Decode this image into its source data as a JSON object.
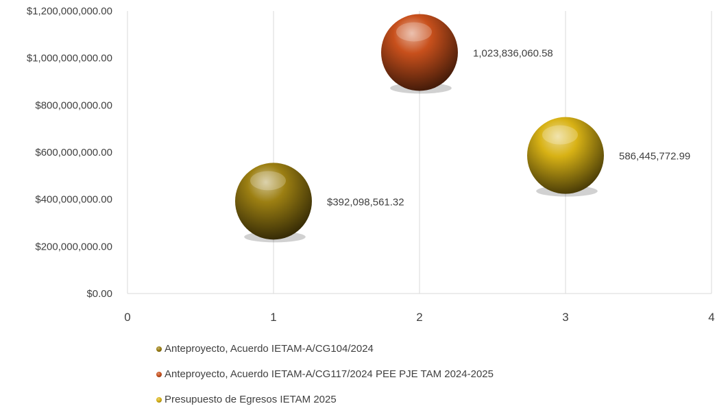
{
  "chart_data": {
    "type": "bubble",
    "title": "",
    "xlabel": "",
    "ylabel": "",
    "xlim": [
      0,
      4
    ],
    "ylim": [
      0,
      1200000000
    ],
    "x_ticks": [
      "0",
      "1",
      "2",
      "3",
      "4"
    ],
    "y_ticks": [
      "$0.00",
      "$200,000,000.00",
      "$400,000,000.00",
      "$600,000,000.00",
      "$800,000,000.00",
      "$1,000,000,000.00",
      "$1,200,000,000.00"
    ],
    "grid": "vertical gridlines",
    "legend_position": "bottom",
    "series": [
      {
        "name": "Anteproyecto, Acuerdo IETAM-A/CG104/2024",
        "x": 1,
        "y": 392098561.32,
        "label": "$392,098,561.32",
        "color": "#9c7f12"
      },
      {
        "name": "Anteproyecto, Acuerdo IETAM-A/CG117/2024 PEE PJE TAM 2024-2025",
        "x": 2,
        "y": 1023836060.58,
        "label": "1,023,836,060.58",
        "color": "#c8501c"
      },
      {
        "name": "Presupuesto de Egresos IETAM 2025",
        "x": 3,
        "y": 586445772.99,
        "label": "586,445,772.99",
        "color": "#d8b215"
      }
    ]
  }
}
